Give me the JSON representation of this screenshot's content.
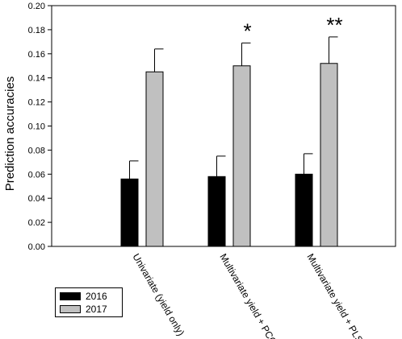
{
  "chart_data": {
    "type": "bar",
    "title": "",
    "xlabel": "",
    "ylabel": "Prediction accuracies",
    "ylim": [
      0,
      0.2
    ],
    "yticks": [
      "0.00",
      "0.02",
      "0.04",
      "0.06",
      "0.08",
      "0.10",
      "0.12",
      "0.14",
      "0.16",
      "0.18",
      "0.20"
    ],
    "categories": [
      "Univariate (yield only)",
      "Multivariate yield + PCO",
      "Multivariate yield + PLS"
    ],
    "series": [
      {
        "name": "2016",
        "color": "#000000",
        "values": [
          0.056,
          0.058,
          0.06
        ],
        "errors": [
          0.015,
          0.017,
          0.017
        ]
      },
      {
        "name": "2017",
        "color": "#c0c0c0",
        "values": [
          0.145,
          0.15,
          0.152
        ],
        "errors": [
          0.019,
          0.019,
          0.022
        ]
      }
    ],
    "annotations": [
      "",
      "*",
      "**"
    ],
    "grid": false,
    "legend_position": "bottom-left"
  }
}
